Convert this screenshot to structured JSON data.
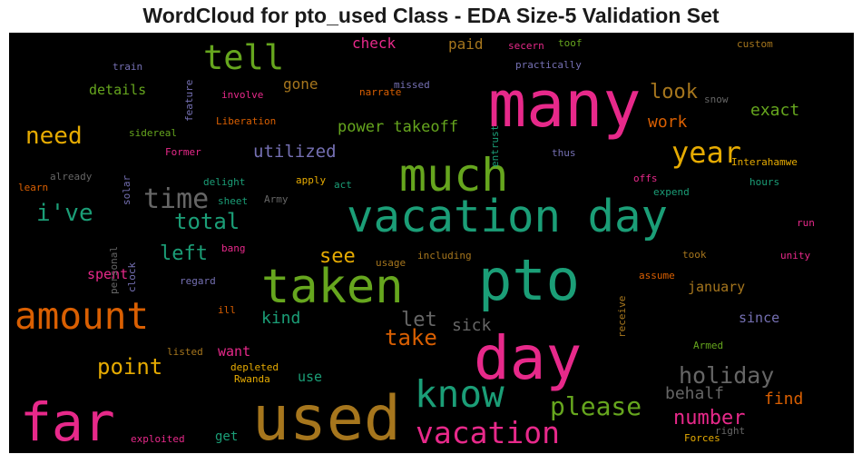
{
  "title": "WordCloud for pto_used Class - EDA Size-5 Validation Set",
  "words": [
    {
      "text": "many",
      "color": "#e7298a"
    },
    {
      "text": "vacation day",
      "color": "#1b9e77"
    },
    {
      "text": "used",
      "color": "#a6761d"
    },
    {
      "text": "pto",
      "color": "#1b9e77"
    },
    {
      "text": "day",
      "color": "#e7298a"
    },
    {
      "text": "taken",
      "color": "#66a61e"
    },
    {
      "text": "much",
      "color": "#66a61e"
    },
    {
      "text": "far",
      "color": "#e7298a"
    },
    {
      "text": "amount",
      "color": "#d95f02"
    },
    {
      "text": "know",
      "color": "#1b9e77"
    },
    {
      "text": "vacation",
      "color": "#e7298a"
    },
    {
      "text": "tell",
      "color": "#66a61e"
    },
    {
      "text": "year",
      "color": "#e6ab02"
    },
    {
      "text": "time",
      "color": "#666666"
    },
    {
      "text": "i've",
      "color": "#1b9e77"
    },
    {
      "text": "need",
      "color": "#e6ab02"
    },
    {
      "text": "please",
      "color": "#66a61e"
    },
    {
      "text": "holiday",
      "color": "#666666"
    },
    {
      "text": "total",
      "color": "#1b9e77"
    },
    {
      "text": "point",
      "color": "#e6ab02"
    },
    {
      "text": "take",
      "color": "#d95f02"
    },
    {
      "text": "number",
      "color": "#e7298a"
    },
    {
      "text": "left",
      "color": "#1b9e77"
    },
    {
      "text": "see",
      "color": "#e6ab02"
    },
    {
      "text": "let",
      "color": "#666666"
    },
    {
      "text": "look",
      "color": "#a6761d"
    },
    {
      "text": "utilized",
      "color": "#7570b3"
    },
    {
      "text": "power takeoff",
      "color": "#66a61e"
    },
    {
      "text": "exact",
      "color": "#66a61e"
    },
    {
      "text": "behalf",
      "color": "#666666"
    },
    {
      "text": "find",
      "color": "#d95f02"
    },
    {
      "text": "sick",
      "color": "#666666"
    },
    {
      "text": "kind",
      "color": "#1b9e77"
    },
    {
      "text": "work",
      "color": "#d95f02"
    },
    {
      "text": "check",
      "color": "#e7298a"
    },
    {
      "text": "paid",
      "color": "#a6761d"
    },
    {
      "text": "gone",
      "color": "#a6761d"
    },
    {
      "text": "details",
      "color": "#66a61e"
    },
    {
      "text": "spent",
      "color": "#e7298a"
    },
    {
      "text": "january",
      "color": "#a6761d"
    },
    {
      "text": "since",
      "color": "#7570b3"
    },
    {
      "text": "want",
      "color": "#e7298a"
    },
    {
      "text": "use",
      "color": "#1b9e77"
    },
    {
      "text": "get",
      "color": "#1b9e77"
    },
    {
      "text": "custom",
      "color": "#a6761d"
    },
    {
      "text": "secern",
      "color": "#e7298a"
    },
    {
      "text": "toof",
      "color": "#66a61e"
    },
    {
      "text": "train",
      "color": "#7570b3"
    },
    {
      "text": "feature",
      "color": "#7570b3"
    },
    {
      "text": "practically",
      "color": "#7570b3"
    },
    {
      "text": "missed",
      "color": "#7570b3"
    },
    {
      "text": "involve",
      "color": "#e7298a"
    },
    {
      "text": "narrate",
      "color": "#d95f02"
    },
    {
      "text": "snow",
      "color": "#666666"
    },
    {
      "text": "Liberation",
      "color": "#d95f02"
    },
    {
      "text": "sidereal",
      "color": "#66a61e"
    },
    {
      "text": "Former",
      "color": "#e7298a"
    },
    {
      "text": "entrust",
      "color": "#1b9e77"
    },
    {
      "text": "thus",
      "color": "#7570b3"
    },
    {
      "text": "Interahamwe",
      "color": "#e6ab02"
    },
    {
      "text": "already",
      "color": "#666666"
    },
    {
      "text": "solar",
      "color": "#7570b3"
    },
    {
      "text": "delight",
      "color": "#1b9e77"
    },
    {
      "text": "apply",
      "color": "#e6ab02"
    },
    {
      "text": "act",
      "color": "#1b9e77"
    },
    {
      "text": "offs",
      "color": "#e7298a"
    },
    {
      "text": "hours",
      "color": "#1b9e77"
    },
    {
      "text": "learn",
      "color": "#d95f02"
    },
    {
      "text": "sheet",
      "color": "#1b9e77"
    },
    {
      "text": "Army",
      "color": "#666666"
    },
    {
      "text": "expend",
      "color": "#1b9e77"
    },
    {
      "text": "personal",
      "color": "#666666"
    },
    {
      "text": "run",
      "color": "#e7298a"
    },
    {
      "text": "clock",
      "color": "#7570b3"
    },
    {
      "text": "bang",
      "color": "#e7298a"
    },
    {
      "text": "including",
      "color": "#a6761d"
    },
    {
      "text": "took",
      "color": "#a6761d"
    },
    {
      "text": "unity",
      "color": "#e7298a"
    },
    {
      "text": "usage",
      "color": "#a6761d"
    },
    {
      "text": "regard",
      "color": "#7570b3"
    },
    {
      "text": "receive",
      "color": "#a6761d"
    },
    {
      "text": "assume",
      "color": "#d95f02"
    },
    {
      "text": "ill",
      "color": "#d95f02"
    },
    {
      "text": "listed",
      "color": "#a6761d"
    },
    {
      "text": "depleted",
      "color": "#e6ab02"
    },
    {
      "text": "Rwanda",
      "color": "#e6ab02"
    },
    {
      "text": "Armed",
      "color": "#66a61e"
    },
    {
      "text": "exploited",
      "color": "#e7298a"
    },
    {
      "text": "right",
      "color": "#666666"
    },
    {
      "text": "Forces",
      "color": "#e6ab02"
    }
  ]
}
